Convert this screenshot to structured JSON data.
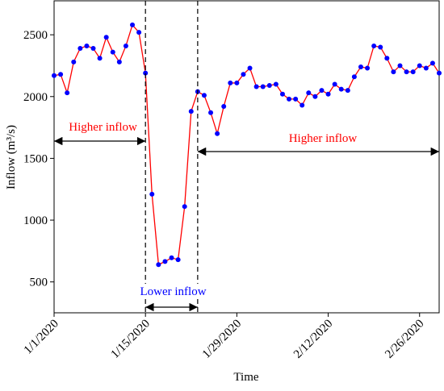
{
  "chart_data": {
    "type": "line",
    "x_label": "Time",
    "y_label": "Inflow (m³/s)",
    "x": [
      "2020-01-01",
      "2020-01-02",
      "2020-01-03",
      "2020-01-04",
      "2020-01-05",
      "2020-01-06",
      "2020-01-07",
      "2020-01-08",
      "2020-01-09",
      "2020-01-10",
      "2020-01-11",
      "2020-01-12",
      "2020-01-13",
      "2020-01-14",
      "2020-01-15",
      "2020-01-16",
      "2020-01-17",
      "2020-01-18",
      "2020-01-19",
      "2020-01-20",
      "2020-01-21",
      "2020-01-22",
      "2020-01-23",
      "2020-01-24",
      "2020-01-25",
      "2020-01-26",
      "2020-01-27",
      "2020-01-28",
      "2020-01-29",
      "2020-01-30",
      "2020-01-31",
      "2020-02-01",
      "2020-02-02",
      "2020-02-03",
      "2020-02-04",
      "2020-02-05",
      "2020-02-06",
      "2020-02-07",
      "2020-02-08",
      "2020-02-09",
      "2020-02-10",
      "2020-02-11",
      "2020-02-12",
      "2020-02-13",
      "2020-02-14",
      "2020-02-15",
      "2020-02-16",
      "2020-02-17",
      "2020-02-18",
      "2020-02-19",
      "2020-02-20",
      "2020-02-21",
      "2020-02-22",
      "2020-02-23",
      "2020-02-24",
      "2020-02-25",
      "2020-02-26",
      "2020-02-27",
      "2020-02-28",
      "2020-02-29"
    ],
    "series": [
      {
        "line_color": "#ff0000",
        "marker_color": "#0000ff",
        "values": [
          2170,
          2180,
          2030,
          2280,
          2390,
          2410,
          2390,
          2310,
          2480,
          2360,
          2280,
          2410,
          2580,
          2520,
          2190,
          1210,
          640,
          665,
          695,
          680,
          1110,
          1880,
          2040,
          2010,
          1870,
          1700,
          1920,
          2110,
          2110,
          2180,
          2230,
          2080,
          2080,
          2090,
          2100,
          2020,
          1980,
          1980,
          1930,
          2030,
          2000,
          2050,
          2020,
          2100,
          2060,
          2050,
          2160,
          2240,
          2230,
          2410,
          2400,
          2310,
          2200,
          2250,
          2200,
          2200,
          2250,
          2230,
          2270,
          2190
        ]
      }
    ],
    "xlim": [
      "2020-01-01",
      "2020-02-29"
    ],
    "xticks": [
      {
        "value": "2020-01-01",
        "label": "1/1/2020"
      },
      {
        "value": "2020-01-15",
        "label": "1/15/2020"
      },
      {
        "value": "2020-01-29",
        "label": "1/29/2020"
      },
      {
        "value": "2020-02-12",
        "label": "2/12/2020"
      },
      {
        "value": "2020-02-26",
        "label": "2/26/2020"
      }
    ],
    "ylim": [
      250,
      2775
    ],
    "yticks": [
      500,
      1000,
      1500,
      2000,
      2500
    ],
    "annotations": [
      {
        "text": "Higher inflow",
        "color": "#ff0000"
      },
      {
        "text": "Lower inflow",
        "color": "#0000ff"
      },
      {
        "text": "Higher inflow",
        "color": "#ff0000"
      }
    ]
  }
}
